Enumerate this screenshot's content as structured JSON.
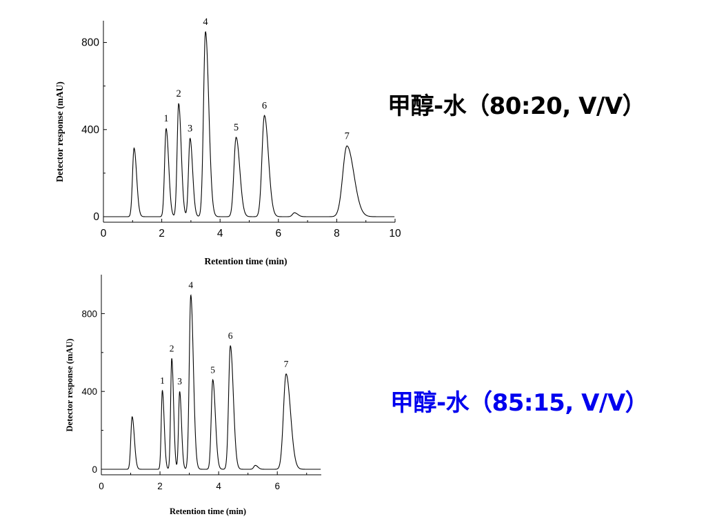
{
  "chart_data": [
    {
      "type": "line",
      "xlabel": "Retention time (min)",
      "ylabel": "Detector response (mAU)",
      "xlim": [
        0,
        10
      ],
      "ylim": [
        -20,
        900
      ],
      "xticks": [
        0,
        2,
        4,
        6,
        8,
        10
      ],
      "xtick_labels": [
        "0",
        "2",
        "4",
        "6",
        "8",
        "10"
      ],
      "yticks": [
        0,
        400,
        800
      ],
      "ytick_labels": [
        "0",
        "400",
        "800"
      ],
      "grid": false,
      "line_color": "#000000",
      "peaks": [
        {
          "label": "",
          "time": 1.05,
          "height": 315
        },
        {
          "label": "1",
          "time": 2.15,
          "height": 405
        },
        {
          "label": "2",
          "time": 2.58,
          "height": 520
        },
        {
          "label": "3",
          "time": 2.97,
          "height": 360
        },
        {
          "label": "4",
          "time": 3.5,
          "height": 850
        },
        {
          "label": "5",
          "time": 4.55,
          "height": 365
        },
        {
          "label": "6",
          "time": 5.52,
          "height": 465
        },
        {
          "label": "",
          "time": 6.55,
          "height": 18
        },
        {
          "label": "7",
          "time": 8.35,
          "height": 325
        }
      ]
    },
    {
      "type": "line",
      "xlabel": "Retention time (min)",
      "ylabel": "Detector response (mAU)",
      "xlim": [
        0,
        7.5
      ],
      "ylim": [
        -20,
        1000
      ],
      "xticks": [
        0,
        2,
        4,
        6
      ],
      "xtick_labels": [
        "0",
        "2",
        "4",
        "6"
      ],
      "yticks": [
        0,
        400,
        800
      ],
      "ytick_labels": [
        "0",
        "400",
        "800"
      ],
      "grid": false,
      "line_color": "#000000",
      "peaks": [
        {
          "label": "",
          "time": 1.05,
          "height": 270
        },
        {
          "label": "1",
          "time": 2.08,
          "height": 405
        },
        {
          "label": "2",
          "time": 2.4,
          "height": 570
        },
        {
          "label": "3",
          "time": 2.67,
          "height": 400
        },
        {
          "label": "4",
          "time": 3.05,
          "height": 895
        },
        {
          "label": "5",
          "time": 3.8,
          "height": 460
        },
        {
          "label": "6",
          "time": 4.4,
          "height": 635
        },
        {
          "label": "",
          "time": 5.25,
          "height": 20
        },
        {
          "label": "7",
          "time": 6.3,
          "height": 490
        }
      ]
    }
  ],
  "conditions": [
    {
      "text": "甲醇-水（80:20, V/V）",
      "color": "#000000"
    },
    {
      "text": "甲醇-水（85:15, V/V）",
      "color": "#0000ee"
    }
  ]
}
